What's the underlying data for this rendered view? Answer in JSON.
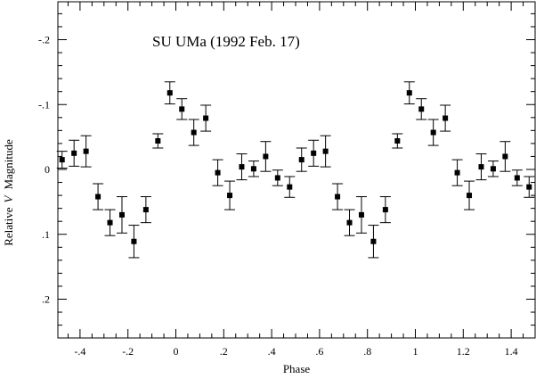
{
  "chart_data": {
    "type": "scatter",
    "title": "SU UMa (1992 Feb. 17)",
    "xlabel": "Phase",
    "ylabel": "Relative V Magnitude",
    "ylabel_parts": [
      "Relative",
      "V",
      "Magnitude"
    ],
    "xlim": [
      -0.5,
      1.5
    ],
    "ylim": [
      -0.26,
      0.26
    ],
    "y_inverted": true,
    "x_ticks": [
      {
        "value": -0.4,
        "label": "-.4"
      },
      {
        "value": -0.2,
        "label": "-.2"
      },
      {
        "value": 0,
        "label": "0"
      },
      {
        "value": 0.2,
        "label": ".2"
      },
      {
        "value": 0.4,
        "label": ".4"
      },
      {
        "value": 0.6,
        "label": ".6"
      },
      {
        "value": 0.8,
        "label": ".8"
      },
      {
        "value": 1,
        "label": "1"
      },
      {
        "value": 1.2,
        "label": "1.2"
      },
      {
        "value": 1.4,
        "label": "1.4"
      }
    ],
    "y_ticks": [
      {
        "value": -0.2,
        "label": "-.2"
      },
      {
        "value": -0.1,
        "label": "-.1"
      },
      {
        "value": 0,
        "label": "0"
      },
      {
        "value": 0.1,
        "label": ".1"
      },
      {
        "value": 0.2,
        "label": ".2"
      }
    ],
    "x_minor_step": 0.05,
    "y_minor_step": 0.02,
    "grid": false,
    "marker": "filled-square",
    "series": [
      {
        "points": [
          {
            "x": -0.475,
            "y": -0.015,
            "err": 0.013
          },
          {
            "x": -0.425,
            "y": -0.025,
            "err": 0.02
          },
          {
            "x": -0.375,
            "y": -0.028,
            "err": 0.024
          },
          {
            "x": -0.325,
            "y": 0.042,
            "err": 0.02
          },
          {
            "x": -0.275,
            "y": 0.082,
            "err": 0.02
          },
          {
            "x": -0.225,
            "y": 0.07,
            "err": 0.028
          },
          {
            "x": -0.175,
            "y": 0.111,
            "err": 0.025
          },
          {
            "x": -0.125,
            "y": 0.062,
            "err": 0.02
          },
          {
            "x": -0.075,
            "y": -0.044,
            "err": 0.011
          },
          {
            "x": -0.025,
            "y": -0.118,
            "err": 0.017
          },
          {
            "x": 0.025,
            "y": -0.093,
            "err": 0.016
          },
          {
            "x": 0.075,
            "y": -0.057,
            "err": 0.02
          },
          {
            "x": 0.125,
            "y": -0.079,
            "err": 0.02
          },
          {
            "x": 0.175,
            "y": 0.005,
            "err": 0.02
          },
          {
            "x": 0.225,
            "y": 0.04,
            "err": 0.022
          },
          {
            "x": 0.275,
            "y": -0.004,
            "err": 0.02
          },
          {
            "x": 0.325,
            "y": -0.001,
            "err": 0.012
          },
          {
            "x": 0.375,
            "y": -0.02,
            "err": 0.023
          },
          {
            "x": 0.425,
            "y": 0.013,
            "err": 0.012
          },
          {
            "x": 0.475,
            "y": 0.027,
            "err": 0.016
          },
          {
            "x": 0.525,
            "y": -0.015,
            "err": 0.018
          },
          {
            "x": 0.575,
            "y": -0.025,
            "err": 0.02
          },
          {
            "x": 0.625,
            "y": -0.028,
            "err": 0.024
          },
          {
            "x": 0.675,
            "y": 0.042,
            "err": 0.02
          },
          {
            "x": 0.725,
            "y": 0.082,
            "err": 0.02
          },
          {
            "x": 0.775,
            "y": 0.07,
            "err": 0.028
          },
          {
            "x": 0.825,
            "y": 0.111,
            "err": 0.025
          },
          {
            "x": 0.875,
            "y": 0.062,
            "err": 0.02
          },
          {
            "x": 0.925,
            "y": -0.044,
            "err": 0.011
          },
          {
            "x": 0.975,
            "y": -0.118,
            "err": 0.017
          },
          {
            "x": 1.025,
            "y": -0.093,
            "err": 0.016
          },
          {
            "x": 1.075,
            "y": -0.057,
            "err": 0.02
          },
          {
            "x": 1.125,
            "y": -0.079,
            "err": 0.02
          },
          {
            "x": 1.175,
            "y": 0.005,
            "err": 0.02
          },
          {
            "x": 1.225,
            "y": 0.04,
            "err": 0.022
          },
          {
            "x": 1.275,
            "y": -0.004,
            "err": 0.02
          },
          {
            "x": 1.325,
            "y": -0.001,
            "err": 0.012
          },
          {
            "x": 1.375,
            "y": -0.02,
            "err": 0.023
          },
          {
            "x": 1.425,
            "y": 0.013,
            "err": 0.012
          },
          {
            "x": 1.475,
            "y": 0.027,
            "err": 0.016
          }
        ]
      }
    ]
  }
}
